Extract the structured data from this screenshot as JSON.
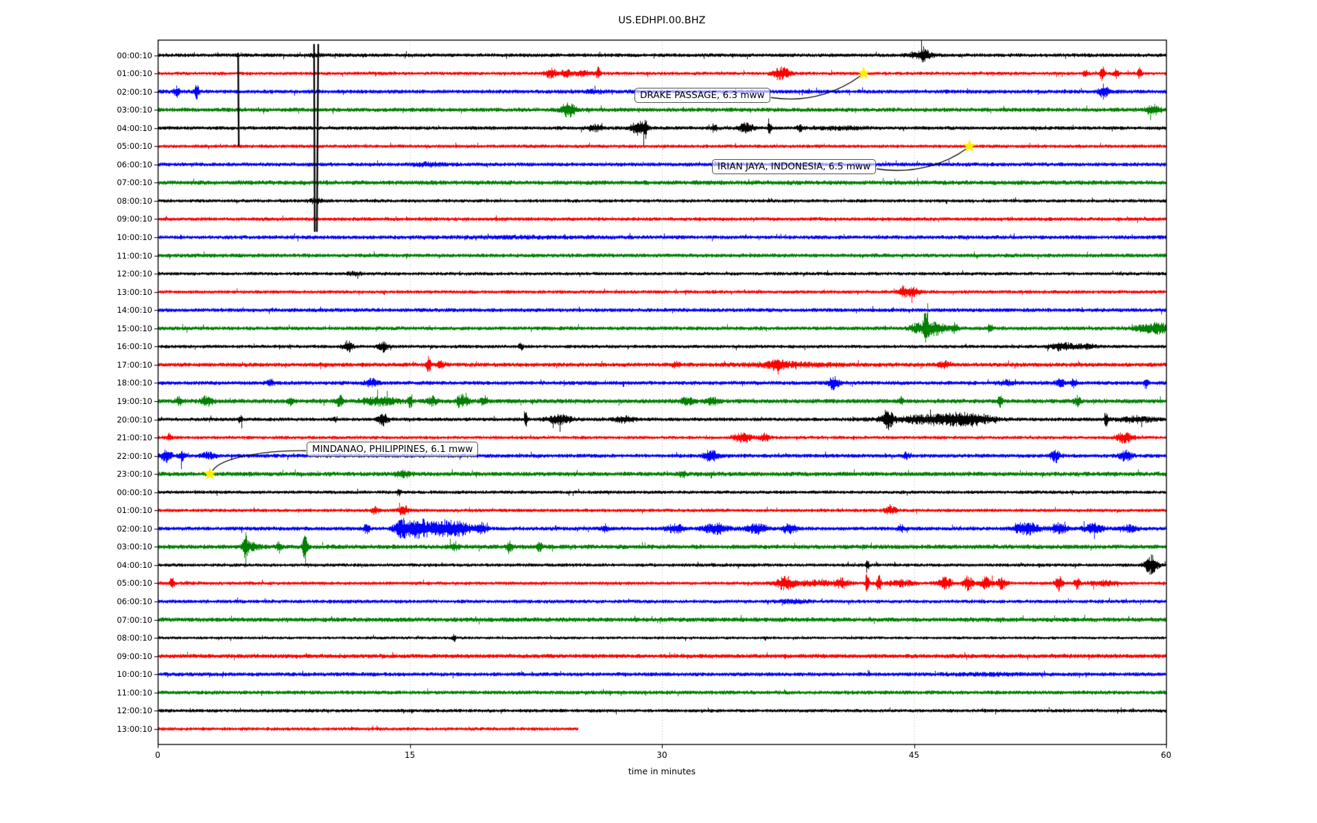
{
  "title": "US.EDHPI.00.BHZ",
  "axes": {
    "xlabel": "time in minutes",
    "x_ticks": [
      "0",
      "15",
      "30",
      "45",
      "60"
    ],
    "x_tick_values": [
      0,
      15,
      30,
      45,
      60
    ],
    "x_range": [
      0,
      60
    ]
  },
  "colors": {
    "black": "#000000",
    "red": "#ff0000",
    "blue": "#0000ff",
    "green": "#008000",
    "grid": "#b0b0b0",
    "star": "#ffee00",
    "annotation_border": "#4d4d4d"
  },
  "chart_data": {
    "type": "line",
    "variant": "seismogram-helicorder-dayplot",
    "title": "US.EDHPI.00.BHZ",
    "xlabel": "time in minutes",
    "x_ticks": [
      0,
      15,
      30,
      45,
      60
    ],
    "x_range_minutes": [
      0,
      60
    ],
    "minutes_per_line": 60,
    "grid": "vertical-dotted",
    "color_cycle": [
      "black",
      "red",
      "blue",
      "green"
    ],
    "events": [
      {
        "label": "DRAKE PASSAGE, 6.3 mww",
        "trace_time": "01:00:10",
        "row_index": 1,
        "minute": 42.0
      },
      {
        "label": "IRIAN JAYA, INDONESIA, 6.5 mww",
        "trace_time": "05:00:10",
        "row_index": 5,
        "minute": 48.3
      },
      {
        "label": "MINDANAO, PHILIPPINES, 6.1 mww",
        "trace_time": "23:00:10",
        "row_index": 23,
        "minute": 3.1
      }
    ],
    "artifacts": [
      {
        "kind": "dropout-spike",
        "minute": 4.78,
        "row_from": -0.1,
        "row_to": 4.95,
        "lines": 1
      },
      {
        "kind": "dropout-spike",
        "minute": 9.3,
        "minute2": 9.55,
        "row_from": -0.58,
        "row_to": 9.66,
        "lines": 2
      }
    ],
    "rows": [
      {
        "label": "00:00:10",
        "color": "black",
        "amp": 2.8,
        "end": 60,
        "star": null,
        "bursts": [
          [
            45.4,
            0.5,
            4
          ],
          [
            45.6,
            0.15,
            7
          ],
          [
            9.4,
            0.2,
            2
          ]
        ]
      },
      {
        "label": "01:00:10",
        "color": "red",
        "amp": 2.6,
        "end": 60,
        "star": 42.0,
        "bursts": [
          [
            23.4,
            0.25,
            6
          ],
          [
            24.3,
            0.2,
            5
          ],
          [
            25.3,
            0.3,
            4
          ],
          [
            26.2,
            0.1,
            8
          ],
          [
            37.1,
            0.35,
            8
          ],
          [
            55.2,
            0.1,
            5
          ],
          [
            56.2,
            0.1,
            11
          ],
          [
            57.0,
            0.1,
            6
          ],
          [
            58.4,
            0.08,
            7
          ]
        ]
      },
      {
        "label": "02:00:10",
        "color": "blue",
        "amp": 3.0,
        "end": 60,
        "star": null,
        "bursts": [
          [
            1.1,
            0.1,
            7
          ],
          [
            2.3,
            0.1,
            9
          ],
          [
            26,
            0.4,
            2
          ],
          [
            56.3,
            0.2,
            9
          ]
        ]
      },
      {
        "label": "03:00:10",
        "color": "green",
        "amp": 3.2,
        "end": 60,
        "star": null,
        "bursts": [
          [
            24.4,
            0.3,
            9
          ],
          [
            59.2,
            0.3,
            6
          ]
        ]
      },
      {
        "label": "04:00:10",
        "color": "black",
        "amp": 2.8,
        "end": 60,
        "star": null,
        "bursts": [
          [
            26.0,
            0.3,
            4
          ],
          [
            28.6,
            0.3,
            9
          ],
          [
            29.0,
            0.08,
            13
          ],
          [
            33.1,
            0.1,
            6
          ],
          [
            35.0,
            0.3,
            6
          ],
          [
            36.4,
            0.08,
            9
          ],
          [
            38.2,
            0.12,
            5
          ],
          [
            40.5,
            1.2,
            1.5
          ]
        ]
      },
      {
        "label": "05:00:10",
        "color": "red",
        "amp": 2.6,
        "end": 60,
        "star": 48.3,
        "bursts": []
      },
      {
        "label": "06:00:10",
        "color": "blue",
        "amp": 3.0,
        "end": 60,
        "star": null,
        "bursts": [
          [
            16,
            0.6,
            2
          ]
        ]
      },
      {
        "label": "07:00:10",
        "color": "green",
        "amp": 3.4,
        "end": 60,
        "star": null,
        "bursts": []
      },
      {
        "label": "08:00:10",
        "color": "black",
        "amp": 2.6,
        "end": 60,
        "star": null,
        "bursts": [
          [
            9.4,
            0.3,
            3
          ]
        ]
      },
      {
        "label": "09:00:10",
        "color": "red",
        "amp": 2.8,
        "end": 60,
        "star": null,
        "bursts": []
      },
      {
        "label": "10:00:10",
        "color": "blue",
        "amp": 3.0,
        "end": 60,
        "star": null,
        "bursts": [
          [
            22,
            3,
            0.8
          ]
        ]
      },
      {
        "label": "11:00:10",
        "color": "green",
        "amp": 3.0,
        "end": 60,
        "star": null,
        "bursts": []
      },
      {
        "label": "12:00:10",
        "color": "black",
        "amp": 2.6,
        "end": 60,
        "star": null,
        "bursts": [
          [
            11.7,
            0.3,
            2
          ]
        ]
      },
      {
        "label": "13:00:10",
        "color": "red",
        "amp": 2.6,
        "end": 60,
        "star": null,
        "bursts": [
          [
            44.3,
            0.15,
            5
          ],
          [
            44.8,
            0.35,
            6
          ]
        ]
      },
      {
        "label": "14:00:10",
        "color": "blue",
        "amp": 3.0,
        "end": 60,
        "star": null,
        "bursts": []
      },
      {
        "label": "15:00:10",
        "color": "green",
        "amp": 3.0,
        "end": 60,
        "star": null,
        "bursts": [
          [
            45.2,
            0.3,
            6
          ],
          [
            45.7,
            0.1,
            25
          ],
          [
            46.3,
            0.4,
            9
          ],
          [
            47.4,
            0.12,
            7
          ],
          [
            49.5,
            0.1,
            6
          ],
          [
            58.8,
            0.5,
            4
          ],
          [
            59.6,
            0.3,
            7
          ]
        ]
      },
      {
        "label": "16:00:10",
        "color": "black",
        "amp": 2.6,
        "end": 60,
        "star": null,
        "bursts": [
          [
            11.3,
            0.2,
            7
          ],
          [
            13.4,
            0.2,
            7
          ],
          [
            21.6,
            0.1,
            4
          ],
          [
            53.8,
            0.5,
            5
          ],
          [
            55.3,
            0.4,
            3
          ]
        ]
      },
      {
        "label": "17:00:10",
        "color": "red",
        "amp": 3.2,
        "end": 60,
        "star": null,
        "bursts": [
          [
            16.1,
            0.08,
            11
          ],
          [
            16.8,
            0.12,
            6
          ],
          [
            30.8,
            0.2,
            3
          ],
          [
            37.5,
            1.8,
            2.5
          ],
          [
            36.8,
            0.3,
            5
          ],
          [
            46.8,
            0.2,
            4
          ]
        ]
      },
      {
        "label": "18:00:10",
        "color": "blue",
        "amp": 3.0,
        "end": 60,
        "star": null,
        "bursts": [
          [
            6.7,
            0.15,
            4
          ],
          [
            12.7,
            0.25,
            5
          ],
          [
            40.2,
            0.2,
            9
          ],
          [
            50.5,
            0.3,
            3
          ],
          [
            53.7,
            0.2,
            5
          ],
          [
            54.5,
            0.12,
            6
          ],
          [
            58.8,
            0.08,
            8
          ]
        ]
      },
      {
        "label": "19:00:10",
        "color": "green",
        "amp": 3.4,
        "end": 60,
        "star": null,
        "bursts": [
          [
            1.3,
            0.15,
            5
          ],
          [
            2.9,
            0.25,
            6
          ],
          [
            7.9,
            0.12,
            5
          ],
          [
            10.8,
            0.12,
            8
          ],
          [
            13.2,
            0.7,
            5
          ],
          [
            15.0,
            0.08,
            10
          ],
          [
            16.3,
            0.2,
            6
          ],
          [
            18.1,
            0.25,
            8
          ],
          [
            19.4,
            0.15,
            6
          ],
          [
            31.5,
            0.3,
            4
          ],
          [
            33,
            0.25,
            4
          ],
          [
            44.2,
            0.08,
            6
          ],
          [
            50.1,
            0.1,
            7
          ],
          [
            54.7,
            0.12,
            6
          ]
        ]
      },
      {
        "label": "20:00:10",
        "color": "black",
        "amp": 2.8,
        "end": 60,
        "star": null,
        "bursts": [
          [
            4.9,
            0.08,
            6
          ],
          [
            10.5,
            0.08,
            4
          ],
          [
            13.4,
            0.2,
            8
          ],
          [
            21.9,
            0.06,
            14
          ],
          [
            23.9,
            0.5,
            6
          ],
          [
            27.8,
            0.4,
            4
          ],
          [
            43.4,
            0.2,
            12
          ],
          [
            45.8,
            1.8,
            5
          ],
          [
            48.2,
            1.0,
            7
          ],
          [
            56.4,
            0.06,
            14
          ],
          [
            58.2,
            0.7,
            4
          ]
        ]
      },
      {
        "label": "21:00:10",
        "color": "red",
        "amp": 2.6,
        "end": 60,
        "star": null,
        "bursts": [
          [
            0.7,
            0.12,
            5
          ],
          [
            34.8,
            0.35,
            7
          ],
          [
            36.1,
            0.2,
            5
          ],
          [
            57.5,
            0.35,
            7
          ]
        ]
      },
      {
        "label": "22:00:10",
        "color": "blue",
        "amp": 3.0,
        "end": 60,
        "star": null,
        "bursts": [
          [
            0.5,
            0.2,
            9
          ],
          [
            1.4,
            0.12,
            7
          ],
          [
            3.0,
            0.3,
            4
          ],
          [
            32.9,
            0.3,
            7
          ],
          [
            44.5,
            0.12,
            4
          ],
          [
            53.4,
            0.2,
            8
          ],
          [
            57.6,
            0.25,
            7
          ]
        ]
      },
      {
        "label": "23:00:10",
        "color": "green",
        "amp": 3.4,
        "end": 60,
        "star": 3.1,
        "bursts": [
          [
            14.6,
            0.3,
            4
          ],
          [
            31.2,
            0.12,
            4
          ]
        ]
      },
      {
        "label": "00:00:10",
        "color": "black",
        "amp": 2.6,
        "end": 60,
        "star": null,
        "bursts": [
          [
            14.3,
            0.1,
            3
          ]
        ]
      },
      {
        "label": "01:00:10",
        "color": "red",
        "amp": 2.6,
        "end": 60,
        "star": null,
        "bursts": [
          [
            12.9,
            0.12,
            6
          ],
          [
            14.6,
            0.2,
            7
          ],
          [
            43.6,
            0.25,
            5
          ]
        ]
      },
      {
        "label": "02:00:10",
        "color": "blue",
        "amp": 3.0,
        "end": 60,
        "star": null,
        "bursts": [
          [
            12.4,
            0.12,
            6
          ],
          [
            14.5,
            0.3,
            12
          ],
          [
            15.6,
            0.5,
            13
          ],
          [
            16.9,
            0.4,
            10
          ],
          [
            17.9,
            0.5,
            9
          ],
          [
            19.2,
            0.25,
            8
          ],
          [
            26.6,
            0.12,
            5
          ],
          [
            30.8,
            0.4,
            5
          ],
          [
            33.2,
            0.5,
            7
          ],
          [
            35.6,
            0.4,
            7
          ],
          [
            37.6,
            0.3,
            6
          ],
          [
            44.2,
            0.15,
            4
          ],
          [
            51.7,
            0.5,
            8
          ],
          [
            53.6,
            0.3,
            7
          ],
          [
            55.7,
            0.4,
            7
          ],
          [
            57.8,
            0.3,
            4
          ]
        ]
      },
      {
        "label": "03:00:10",
        "color": "green",
        "amp": 3.4,
        "end": 60,
        "star": null,
        "bursts": [
          [
            5.2,
            0.1,
            21
          ],
          [
            5.6,
            0.3,
            5
          ],
          [
            7.2,
            0.08,
            8
          ],
          [
            8.75,
            0.1,
            19
          ],
          [
            17.6,
            0.2,
            4
          ],
          [
            20.9,
            0.12,
            8
          ],
          [
            22.7,
            0.15,
            5
          ]
        ]
      },
      {
        "label": "04:00:10",
        "color": "black",
        "amp": 2.6,
        "end": 60,
        "star": null,
        "bursts": [
          [
            42.2,
            0.06,
            11
          ],
          [
            59.1,
            0.25,
            13
          ]
        ]
      },
      {
        "label": "05:00:10",
        "color": "red",
        "amp": 2.6,
        "end": 60,
        "star": null,
        "bursts": [
          [
            0.85,
            0.1,
            9
          ],
          [
            37.3,
            0.35,
            8
          ],
          [
            39,
            1.2,
            3
          ],
          [
            40.7,
            0.25,
            5
          ],
          [
            42.2,
            0.06,
            21
          ],
          [
            42.9,
            0.08,
            13
          ],
          [
            44.2,
            0.5,
            4
          ],
          [
            46.8,
            0.3,
            8
          ],
          [
            48.2,
            0.2,
            10
          ],
          [
            49.3,
            0.25,
            8
          ],
          [
            50.2,
            0.2,
            7
          ],
          [
            53.6,
            0.15,
            10
          ],
          [
            54.7,
            0.12,
            8
          ],
          [
            56.2,
            0.6,
            3
          ]
        ]
      },
      {
        "label": "06:00:10",
        "color": "blue",
        "amp": 2.8,
        "end": 60,
        "star": null,
        "bursts": [
          [
            37.8,
            0.6,
            2
          ]
        ]
      },
      {
        "label": "07:00:10",
        "color": "green",
        "amp": 3.4,
        "end": 60,
        "star": null,
        "bursts": []
      },
      {
        "label": "08:00:10",
        "color": "black",
        "amp": 2.2,
        "end": 60,
        "star": null,
        "bursts": [
          [
            17.6,
            0.08,
            5
          ]
        ]
      },
      {
        "label": "09:00:10",
        "color": "red",
        "amp": 3.2,
        "end": 60,
        "star": null,
        "bursts": []
      },
      {
        "label": "10:00:10",
        "color": "blue",
        "amp": 3.0,
        "end": 60,
        "star": null,
        "bursts": [
          [
            49,
            1.5,
            1
          ]
        ]
      },
      {
        "label": "11:00:10",
        "color": "green",
        "amp": 3.0,
        "end": 60,
        "star": null,
        "bursts": []
      },
      {
        "label": "12:00:10",
        "color": "black",
        "amp": 2.6,
        "end": 60,
        "star": null,
        "bursts": []
      },
      {
        "label": "13:00:10",
        "color": "red",
        "amp": 2.6,
        "end": 25.0,
        "star": null,
        "bursts": []
      }
    ]
  }
}
